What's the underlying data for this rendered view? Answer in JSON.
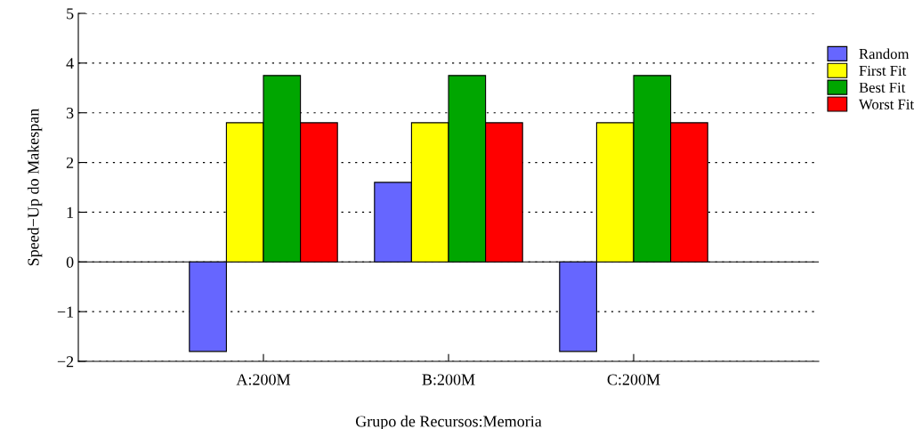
{
  "chart_data": {
    "type": "bar",
    "xlabel": "Grupo de Recursos:Memoria",
    "ylabel": "Speed−Up do Makespan",
    "categories": [
      "A:200M",
      "B:200M",
      "C:200M"
    ],
    "series": [
      {
        "name": "Random",
        "color": "#6666ff",
        "values": [
          -1.8,
          1.6,
          -1.8
        ]
      },
      {
        "name": "First Fit",
        "color": "#ffff00",
        "values": [
          2.8,
          2.8,
          2.8
        ]
      },
      {
        "name": "Best Fit",
        "color": "#00a600",
        "values": [
          3.75,
          3.75,
          3.75
        ]
      },
      {
        "name": "Worst Fit",
        "color": "#ff0000",
        "values": [
          2.8,
          2.8,
          2.8
        ]
      }
    ],
    "ylim": [
      -2,
      5
    ],
    "yticks": [
      {
        "value": -2,
        "label": "−2"
      },
      {
        "value": -1,
        "label": "−1"
      },
      0,
      1,
      2,
      3,
      4,
      5
    ],
    "ref_lines": [
      {
        "axis": "y",
        "value": 0,
        "label": null,
        "color": "#000000",
        "line_style": "solid"
      }
    ],
    "grid": "y",
    "legend": "top right"
  }
}
